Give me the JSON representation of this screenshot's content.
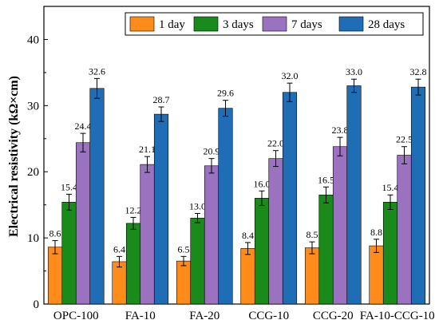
{
  "chart_data": {
    "type": "bar",
    "categories": [
      "OPC-100",
      "FA-10",
      "FA-20",
      "CCG-10",
      "CCG-20",
      "FA-10-CCG-10"
    ],
    "ylabel": "Electrical resistivity  (kΩ×cm)",
    "ylim": [
      0,
      45
    ],
    "yticks": [
      0,
      10,
      20,
      30,
      40
    ],
    "legend_position": "top-right",
    "series": [
      {
        "name": "1 day",
        "color": "#ff8c1a",
        "values": [
          8.6,
          6.4,
          6.5,
          8.4,
          8.5,
          8.8
        ],
        "errors": [
          1.0,
          0.8,
          0.7,
          0.9,
          0.9,
          1.0
        ],
        "labels": [
          "8.6",
          "6.4",
          "6.5",
          "8.4",
          "8.5",
          "8.8"
        ]
      },
      {
        "name": "3 days",
        "color": "#1a8a1a",
        "values": [
          15.4,
          12.2,
          13.0,
          16.0,
          16.5,
          15.4
        ],
        "errors": [
          1.2,
          0.9,
          0.7,
          1.1,
          1.2,
          1.1
        ],
        "labels": [
          "15.4",
          "12.2",
          "13.0",
          "16.0",
          "16.5",
          "15.4"
        ]
      },
      {
        "name": "7 days",
        "color": "#9b72c0",
        "values": [
          24.4,
          21.1,
          20.9,
          22.0,
          23.8,
          22.5
        ],
        "errors": [
          1.4,
          1.2,
          1.1,
          1.2,
          1.4,
          1.3
        ],
        "labels": [
          "24.4",
          "21.1",
          "20.9",
          "22.0",
          "23.8",
          "22.5"
        ]
      },
      {
        "name": "28 days",
        "color": "#1f6db5",
        "values": [
          32.6,
          28.7,
          29.6,
          32.0,
          33.0,
          32.8
        ],
        "errors": [
          1.5,
          1.1,
          1.2,
          1.4,
          1.0,
          1.2
        ],
        "labels": [
          "32.6",
          "28.7",
          "29.6",
          "32.0",
          "33.0",
          "32.8"
        ]
      }
    ]
  }
}
